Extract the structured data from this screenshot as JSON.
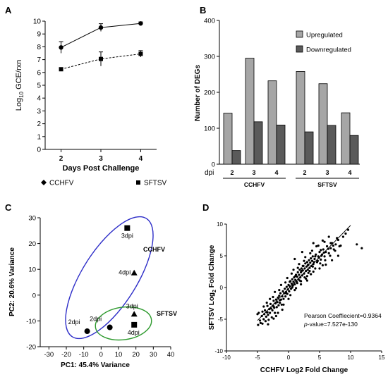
{
  "panels": {
    "A": "A",
    "B": "B",
    "C": "C",
    "D": "D"
  },
  "chart_data": [
    {
      "panel": "A",
      "type": "line",
      "xlabel": "Days Post  Challenge",
      "ylabel": {
        "base": "Log",
        "sub": "10",
        "rest": " GCE/rxn"
      },
      "x": [
        2,
        3,
        4
      ],
      "xlim": [
        1.6,
        4.4
      ],
      "ylim": [
        0,
        10
      ],
      "yticks": [
        0,
        1,
        2,
        3,
        4,
        5,
        6,
        7,
        8,
        9,
        10
      ],
      "grid": false,
      "legend_position": "bottom",
      "series": [
        {
          "name": "CCHFV",
          "marker": "diamond",
          "line": "solid",
          "values": [
            7.95,
            9.5,
            9.82
          ],
          "err": [
            0.45,
            0.3,
            0.12
          ]
        },
        {
          "name": "SFTSV",
          "marker": "square",
          "line": "dashed",
          "values": [
            6.25,
            7.05,
            7.45
          ],
          "err": [
            0.12,
            0.55,
            0.25
          ]
        }
      ]
    },
    {
      "panel": "B",
      "type": "bar",
      "ylabel": "Number of DEGs",
      "ylim": [
        0,
        400
      ],
      "yticks": [
        0,
        100,
        200,
        300,
        400
      ],
      "row_label": "dpi",
      "categories": [
        "2",
        "3",
        "4",
        "2",
        "3",
        "4"
      ],
      "groups": [
        {
          "label": "CCHFV",
          "indices": [
            0,
            1,
            2
          ]
        },
        {
          "label": "SFTSV",
          "indices": [
            3,
            4,
            5
          ]
        }
      ],
      "legend_position": "top-right",
      "series": [
        {
          "name": "Upregulated",
          "color": "#a6a6a6",
          "values": [
            142,
            295,
            232,
            258,
            224,
            143
          ]
        },
        {
          "name": "Downregulated",
          "color": "#5a5a5a",
          "values": [
            38,
            118,
            109,
            90,
            108,
            80
          ]
        }
      ]
    },
    {
      "panel": "C",
      "type": "scatter",
      "xlabel": "PC1: 45.4% Variance",
      "ylabel": "PC2: 20.6% Variance",
      "xlim": [
        -35,
        40
      ],
      "ylim": [
        -20,
        30
      ],
      "xticks": [
        -30,
        -20,
        -10,
        0,
        10,
        20,
        30,
        40
      ],
      "yticks": [
        -20,
        -10,
        0,
        10,
        20,
        30
      ],
      "points": [
        {
          "x": -8,
          "y": -14,
          "marker": "circle",
          "label": "2dpi"
        },
        {
          "x": 5,
          "y": -12.5,
          "marker": "circle",
          "label": "2dpi"
        },
        {
          "x": 15,
          "y": 26,
          "marker": "square",
          "label": "3dpi"
        },
        {
          "x": 19,
          "y": 8.5,
          "marker": "triangle",
          "label": "4dpi"
        },
        {
          "x": 19,
          "y": -7.5,
          "marker": "triangle",
          "label": "3dpi"
        },
        {
          "x": 19,
          "y": -11.5,
          "marker": "square",
          "label": "4dpi"
        }
      ],
      "groups": [
        {
          "label": "CCHFV",
          "color": "#2e2ec8"
        },
        {
          "label": "SFTSV",
          "color": "#2e9a2e"
        }
      ]
    },
    {
      "panel": "D",
      "type": "scatter",
      "xlabel": "CCHFV Log2 Fold Change",
      "ylabel": {
        "base": "SFTSV Log",
        "sub": "2",
        "rest": " Fold Change"
      },
      "xlim": [
        -10,
        15
      ],
      "ylim": [
        -10,
        10
      ],
      "xticks": [
        -10,
        -5,
        0,
        5,
        10,
        15
      ],
      "yticks": [
        -10,
        -5,
        0,
        5,
        10
      ],
      "annotation": {
        "line1": "Pearson  Coeffiecient=0.9364",
        "line2_italic": "p",
        "line2_rest": "-value=7.527e-130"
      },
      "regression": {
        "x": [
          -5,
          10
        ],
        "y": [
          -5.2,
          9.8
        ]
      },
      "points": [
        [
          -5.0,
          -4.2
        ],
        [
          -4.8,
          -4.0
        ],
        [
          -4.6,
          -5.2
        ],
        [
          -4.5,
          -5.6
        ],
        [
          -4.3,
          -4.5
        ],
        [
          -4.2,
          -3.8
        ],
        [
          -4.0,
          -5.0
        ],
        [
          -3.9,
          -4.2
        ],
        [
          -3.8,
          -3.6
        ],
        [
          -3.7,
          -5.3
        ],
        [
          -3.6,
          -4.6
        ],
        [
          -3.5,
          -3.9
        ],
        [
          -3.4,
          -2.9
        ],
        [
          -3.3,
          -4.3
        ],
        [
          -3.2,
          -5.1
        ],
        [
          -3.1,
          -3.4
        ],
        [
          -3.0,
          -4.0
        ],
        [
          -2.9,
          -2.6
        ],
        [
          -2.8,
          -3.3
        ],
        [
          -2.7,
          -4.7
        ],
        [
          -2.6,
          -3.6
        ],
        [
          -2.5,
          -2.9
        ],
        [
          -2.4,
          -2.1
        ],
        [
          -2.3,
          -3.2
        ],
        [
          -2.2,
          -4.0
        ],
        [
          -2.1,
          -2.5
        ],
        [
          -2.0,
          -1.9
        ],
        [
          -1.9,
          -3.1
        ],
        [
          -1.8,
          -2.3
        ],
        [
          -1.7,
          -1.6
        ],
        [
          -1.6,
          -2.8
        ],
        [
          -1.5,
          -1.3
        ],
        [
          -1.4,
          -2.4
        ],
        [
          -1.3,
          -0.9
        ],
        [
          -1.2,
          -1.9
        ],
        [
          -1.1,
          -2.7
        ],
        [
          -1.0,
          -1.4
        ],
        [
          -0.9,
          -0.6
        ],
        [
          -0.8,
          -1.8
        ],
        [
          -0.7,
          -0.9
        ],
        [
          -0.6,
          -0.2
        ],
        [
          -0.5,
          -1.4
        ],
        [
          -0.4,
          -0.7
        ],
        [
          -0.3,
          0.1
        ],
        [
          -0.2,
          -1.0
        ],
        [
          -0.1,
          -0.3
        ],
        [
          0.0,
          0.4
        ],
        [
          0.1,
          -0.6
        ],
        [
          0.2,
          0.2
        ],
        [
          0.3,
          1.0
        ],
        [
          0.4,
          -0.2
        ],
        [
          0.5,
          0.6
        ],
        [
          0.6,
          1.3
        ],
        [
          0.7,
          0.3
        ],
        [
          0.8,
          0.9
        ],
        [
          0.9,
          1.6
        ],
        [
          1.0,
          0.5
        ],
        [
          1.1,
          1.2
        ],
        [
          1.2,
          2.0
        ],
        [
          1.3,
          0.9
        ],
        [
          1.4,
          1.7
        ],
        [
          1.5,
          2.4
        ],
        [
          1.6,
          1.3
        ],
        [
          1.7,
          2.0
        ],
        [
          1.8,
          2.8
        ],
        [
          1.9,
          1.6
        ],
        [
          2.0,
          2.4
        ],
        [
          2.1,
          3.0
        ],
        [
          2.2,
          1.9
        ],
        [
          2.3,
          2.7
        ],
        [
          2.4,
          3.4
        ],
        [
          2.5,
          2.2
        ],
        [
          2.6,
          3.0
        ],
        [
          2.7,
          3.8
        ],
        [
          2.8,
          2.6
        ],
        [
          2.9,
          3.3
        ],
        [
          3.0,
          4.0
        ],
        [
          3.1,
          2.8
        ],
        [
          3.2,
          3.6
        ],
        [
          3.3,
          4.3
        ],
        [
          3.4,
          3.1
        ],
        [
          3.5,
          3.9
        ],
        [
          3.6,
          4.6
        ],
        [
          3.7,
          3.4
        ],
        [
          3.8,
          4.2
        ],
        [
          3.9,
          4.9
        ],
        [
          4.0,
          3.7
        ],
        [
          4.2,
          4.5
        ],
        [
          4.4,
          5.2
        ],
        [
          4.6,
          4.0
        ],
        [
          4.8,
          4.9
        ],
        [
          5.0,
          5.6
        ],
        [
          5.2,
          4.4
        ],
        [
          5.4,
          5.2
        ],
        [
          5.6,
          6.0
        ],
        [
          5.8,
          4.9
        ],
        [
          6.0,
          5.6
        ],
        [
          6.2,
          6.5
        ],
        [
          6.5,
          5.4
        ],
        [
          6.8,
          6.2
        ],
        [
          7.0,
          7.0
        ],
        [
          7.3,
          6.0
        ],
        [
          7.6,
          6.8
        ],
        [
          8.0,
          7.5
        ],
        [
          8.4,
          6.6
        ],
        [
          8.8,
          8.0
        ],
        [
          9.2,
          8.5
        ],
        [
          9.6,
          9.1
        ],
        [
          2.0,
          1.0
        ],
        [
          3.0,
          1.8
        ],
        [
          4.0,
          2.5
        ],
        [
          5.0,
          3.0
        ],
        [
          6.0,
          3.6
        ],
        [
          4.5,
          6.5
        ],
        [
          3.5,
          5.4
        ],
        [
          2.5,
          4.2
        ],
        [
          1.5,
          3.1
        ],
        [
          0.5,
          2.2
        ],
        [
          -0.5,
          0.8
        ],
        [
          -1.5,
          -0.4
        ],
        [
          -2.5,
          -1.5
        ],
        [
          -3.5,
          -2.4
        ],
        [
          -4.0,
          -3.0
        ],
        [
          -2.0,
          -4.5
        ],
        [
          -1.0,
          -3.5
        ],
        [
          0.0,
          -1.8
        ],
        [
          1.0,
          -0.4
        ],
        [
          2.0,
          0.5
        ],
        [
          3.0,
          1.1
        ],
        [
          5.5,
          3.5
        ],
        [
          7.0,
          4.3
        ],
        [
          8.0,
          5.0
        ],
        [
          11.0,
          6.8
        ],
        [
          11.8,
          6.2
        ],
        [
          1.0,
          4.5
        ],
        [
          2.2,
          5.6
        ],
        [
          4.0,
          7.0
        ],
        [
          5.5,
          7.4
        ],
        [
          6.5,
          8.0
        ],
        [
          -4.9,
          -5.9
        ],
        [
          -4.2,
          -5.7
        ],
        [
          -3.3,
          -5.8
        ],
        [
          -2.4,
          -4.9
        ],
        [
          -1.7,
          -4.0
        ],
        [
          -0.8,
          -2.7
        ],
        [
          0.3,
          -1.2
        ],
        [
          1.2,
          -0.1
        ],
        [
          1.8,
          1.1
        ],
        [
          2.8,
          1.4
        ],
        [
          3.6,
          2.1
        ],
        [
          4.3,
          3.0
        ],
        [
          5.1,
          3.8
        ],
        [
          5.9,
          4.3
        ],
        [
          6.7,
          5.0
        ],
        [
          7.5,
          5.8
        ],
        [
          8.2,
          6.5
        ],
        [
          -3.0,
          -1.8
        ],
        [
          -2.2,
          -0.7
        ],
        [
          -1.2,
          0.4
        ],
        [
          -0.2,
          1.5
        ],
        [
          0.8,
          2.8
        ],
        [
          1.7,
          3.7
        ],
        [
          2.7,
          4.8
        ],
        [
          3.8,
          5.8
        ],
        [
          4.8,
          6.6
        ],
        [
          5.8,
          7.2
        ],
        [
          6.8,
          7.0
        ],
        [
          7.8,
          7.8
        ],
        [
          2.3,
          3.4
        ],
        [
          3.2,
          2.3
        ],
        [
          3.9,
          3.3
        ],
        [
          4.7,
          4.2
        ],
        [
          5.3,
          5.0
        ],
        [
          1.4,
          0.7
        ],
        [
          0.6,
          0.0
        ],
        [
          -0.4,
          -0.9
        ],
        [
          -1.4,
          -2.0
        ],
        [
          -2.4,
          -3.0
        ],
        [
          -3.4,
          -3.9
        ],
        [
          2.6,
          1.6
        ],
        [
          3.4,
          2.6
        ],
        [
          4.1,
          4.0
        ],
        [
          4.9,
          4.7
        ],
        [
          5.7,
          5.5
        ],
        [
          6.4,
          6.1
        ],
        [
          7.2,
          6.6
        ],
        [
          0.2,
          0.9
        ],
        [
          1.1,
          1.8
        ],
        [
          2.1,
          2.6
        ],
        [
          3.1,
          3.5
        ],
        [
          4.3,
          4.9
        ],
        [
          5.2,
          5.9
        ]
      ]
    }
  ]
}
